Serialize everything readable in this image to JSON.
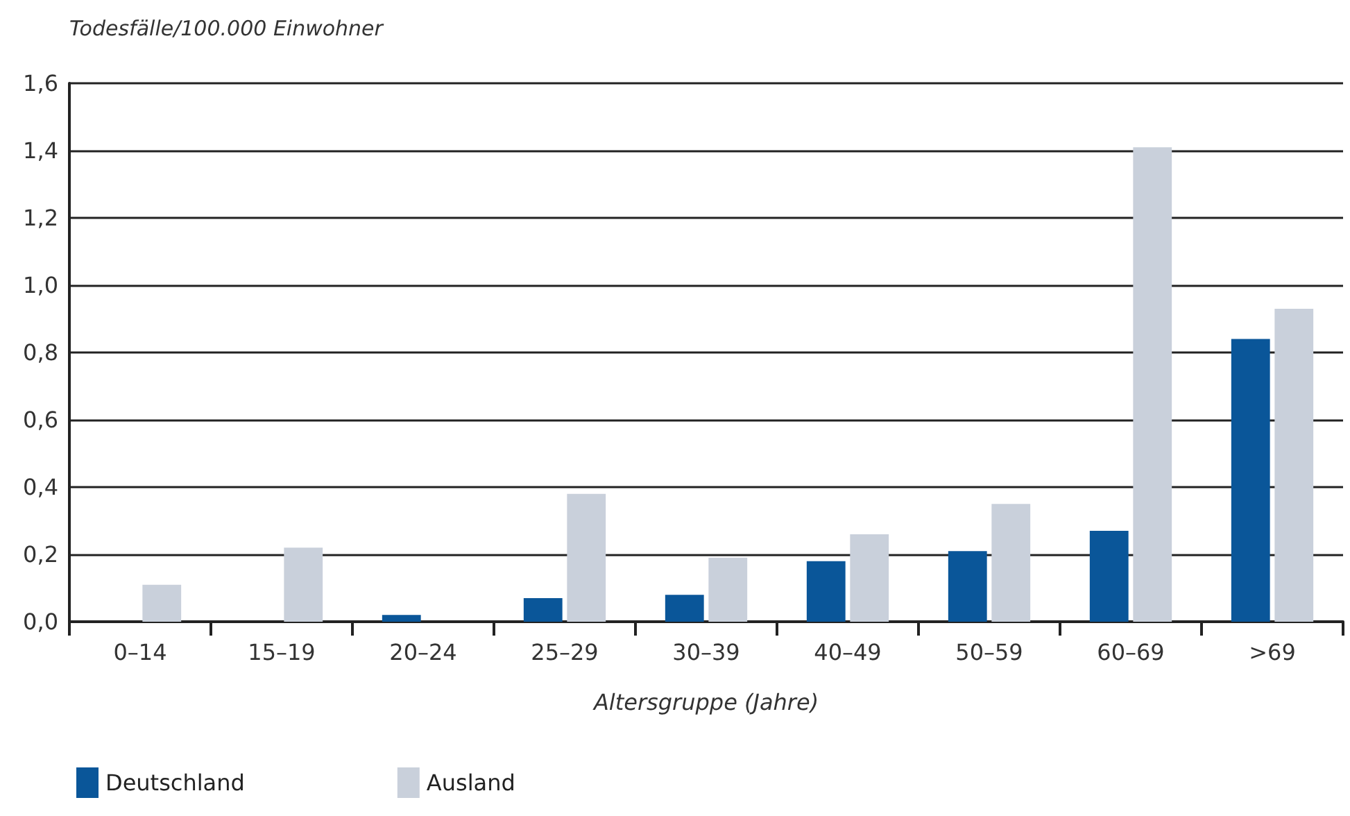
{
  "chart_data": {
    "type": "bar",
    "ylabel": "Todesfälle/100.000 Einwohner",
    "xlabel": "Altersgruppe (Jahre)",
    "categories": [
      "0–14",
      "15–19",
      "20–24",
      "25–29",
      "30–39",
      "40–49",
      "50–59",
      "60–69",
      ">69"
    ],
    "series": [
      {
        "name": "Deutschland",
        "color": "#0a5699",
        "values": [
          0,
          0,
          0.02,
          0.07,
          0.08,
          0.18,
          0.21,
          0.27,
          0.84
        ]
      },
      {
        "name": "Ausland",
        "color": "#c9d0db",
        "values": [
          0.11,
          0.22,
          0,
          0.38,
          0.19,
          0.26,
          0.35,
          1.41,
          0.93
        ]
      }
    ],
    "ylim": [
      0,
      1.6
    ],
    "yticks": [
      {
        "value": 0,
        "label": "0,0"
      },
      {
        "value": 0.2,
        "label": "0,2"
      },
      {
        "value": 0.4,
        "label": "0,4"
      },
      {
        "value": 0.6,
        "label": "0,6"
      },
      {
        "value": 0.8,
        "label": "0,8"
      },
      {
        "value": 1.0,
        "label": "1,0"
      },
      {
        "value": 1.2,
        "label": "1,2"
      },
      {
        "value": 1.4,
        "label": "1,4"
      },
      {
        "value": 1.6,
        "label": "1,6"
      }
    ],
    "grid": "y",
    "legend": "bottom left"
  }
}
